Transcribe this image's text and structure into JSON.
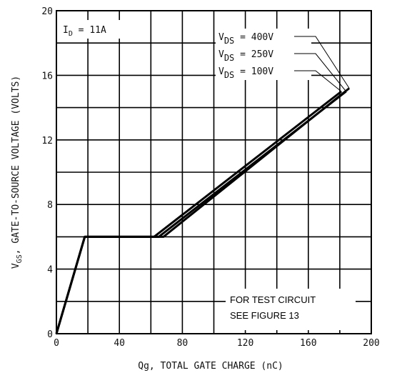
{
  "chart_data": {
    "type": "line",
    "title": "",
    "xlabel": "Qg, TOTAL GATE CHARGE (nC)",
    "ylabel": "VGS, GATE-TO-SOURCE VOLTAGE (VOLTS)",
    "ylabel_parts": {
      "main": "V",
      "sub": "GS",
      "rest": ", GATE-TO-SOURCE VOLTAGE (VOLTS)"
    },
    "xlim": [
      0,
      200
    ],
    "ylim": [
      0,
      20
    ],
    "x_ticks": [
      0,
      40,
      80,
      120,
      160,
      200
    ],
    "y_ticks": [
      0,
      4,
      8,
      12,
      16,
      20
    ],
    "grid": true,
    "condition": {
      "main": "I",
      "sub": "D",
      "rest": " = 11A"
    },
    "series": [
      {
        "name": "VDS = 100V",
        "label_main": "V",
        "label_sub": "DS",
        "label_rest": " = 100V",
        "x": [
          0,
          18,
          62,
          181
        ],
        "y": [
          0,
          6,
          6,
          15
        ]
      },
      {
        "name": "VDS = 250V",
        "label_main": "V",
        "label_sub": "DS",
        "label_rest": " = 250V",
        "x": [
          0,
          18,
          65,
          184
        ],
        "y": [
          0,
          6,
          6,
          15
        ]
      },
      {
        "name": "VDS = 400V",
        "label_main": "V",
        "label_sub": "DS",
        "label_rest": " = 400V",
        "x": [
          0,
          18,
          68,
          186
        ],
        "y": [
          0,
          6,
          6,
          15.2
        ]
      }
    ],
    "note_lines": [
      "FOR TEST CIRCUIT",
      "SEE FIGURE 13"
    ]
  }
}
